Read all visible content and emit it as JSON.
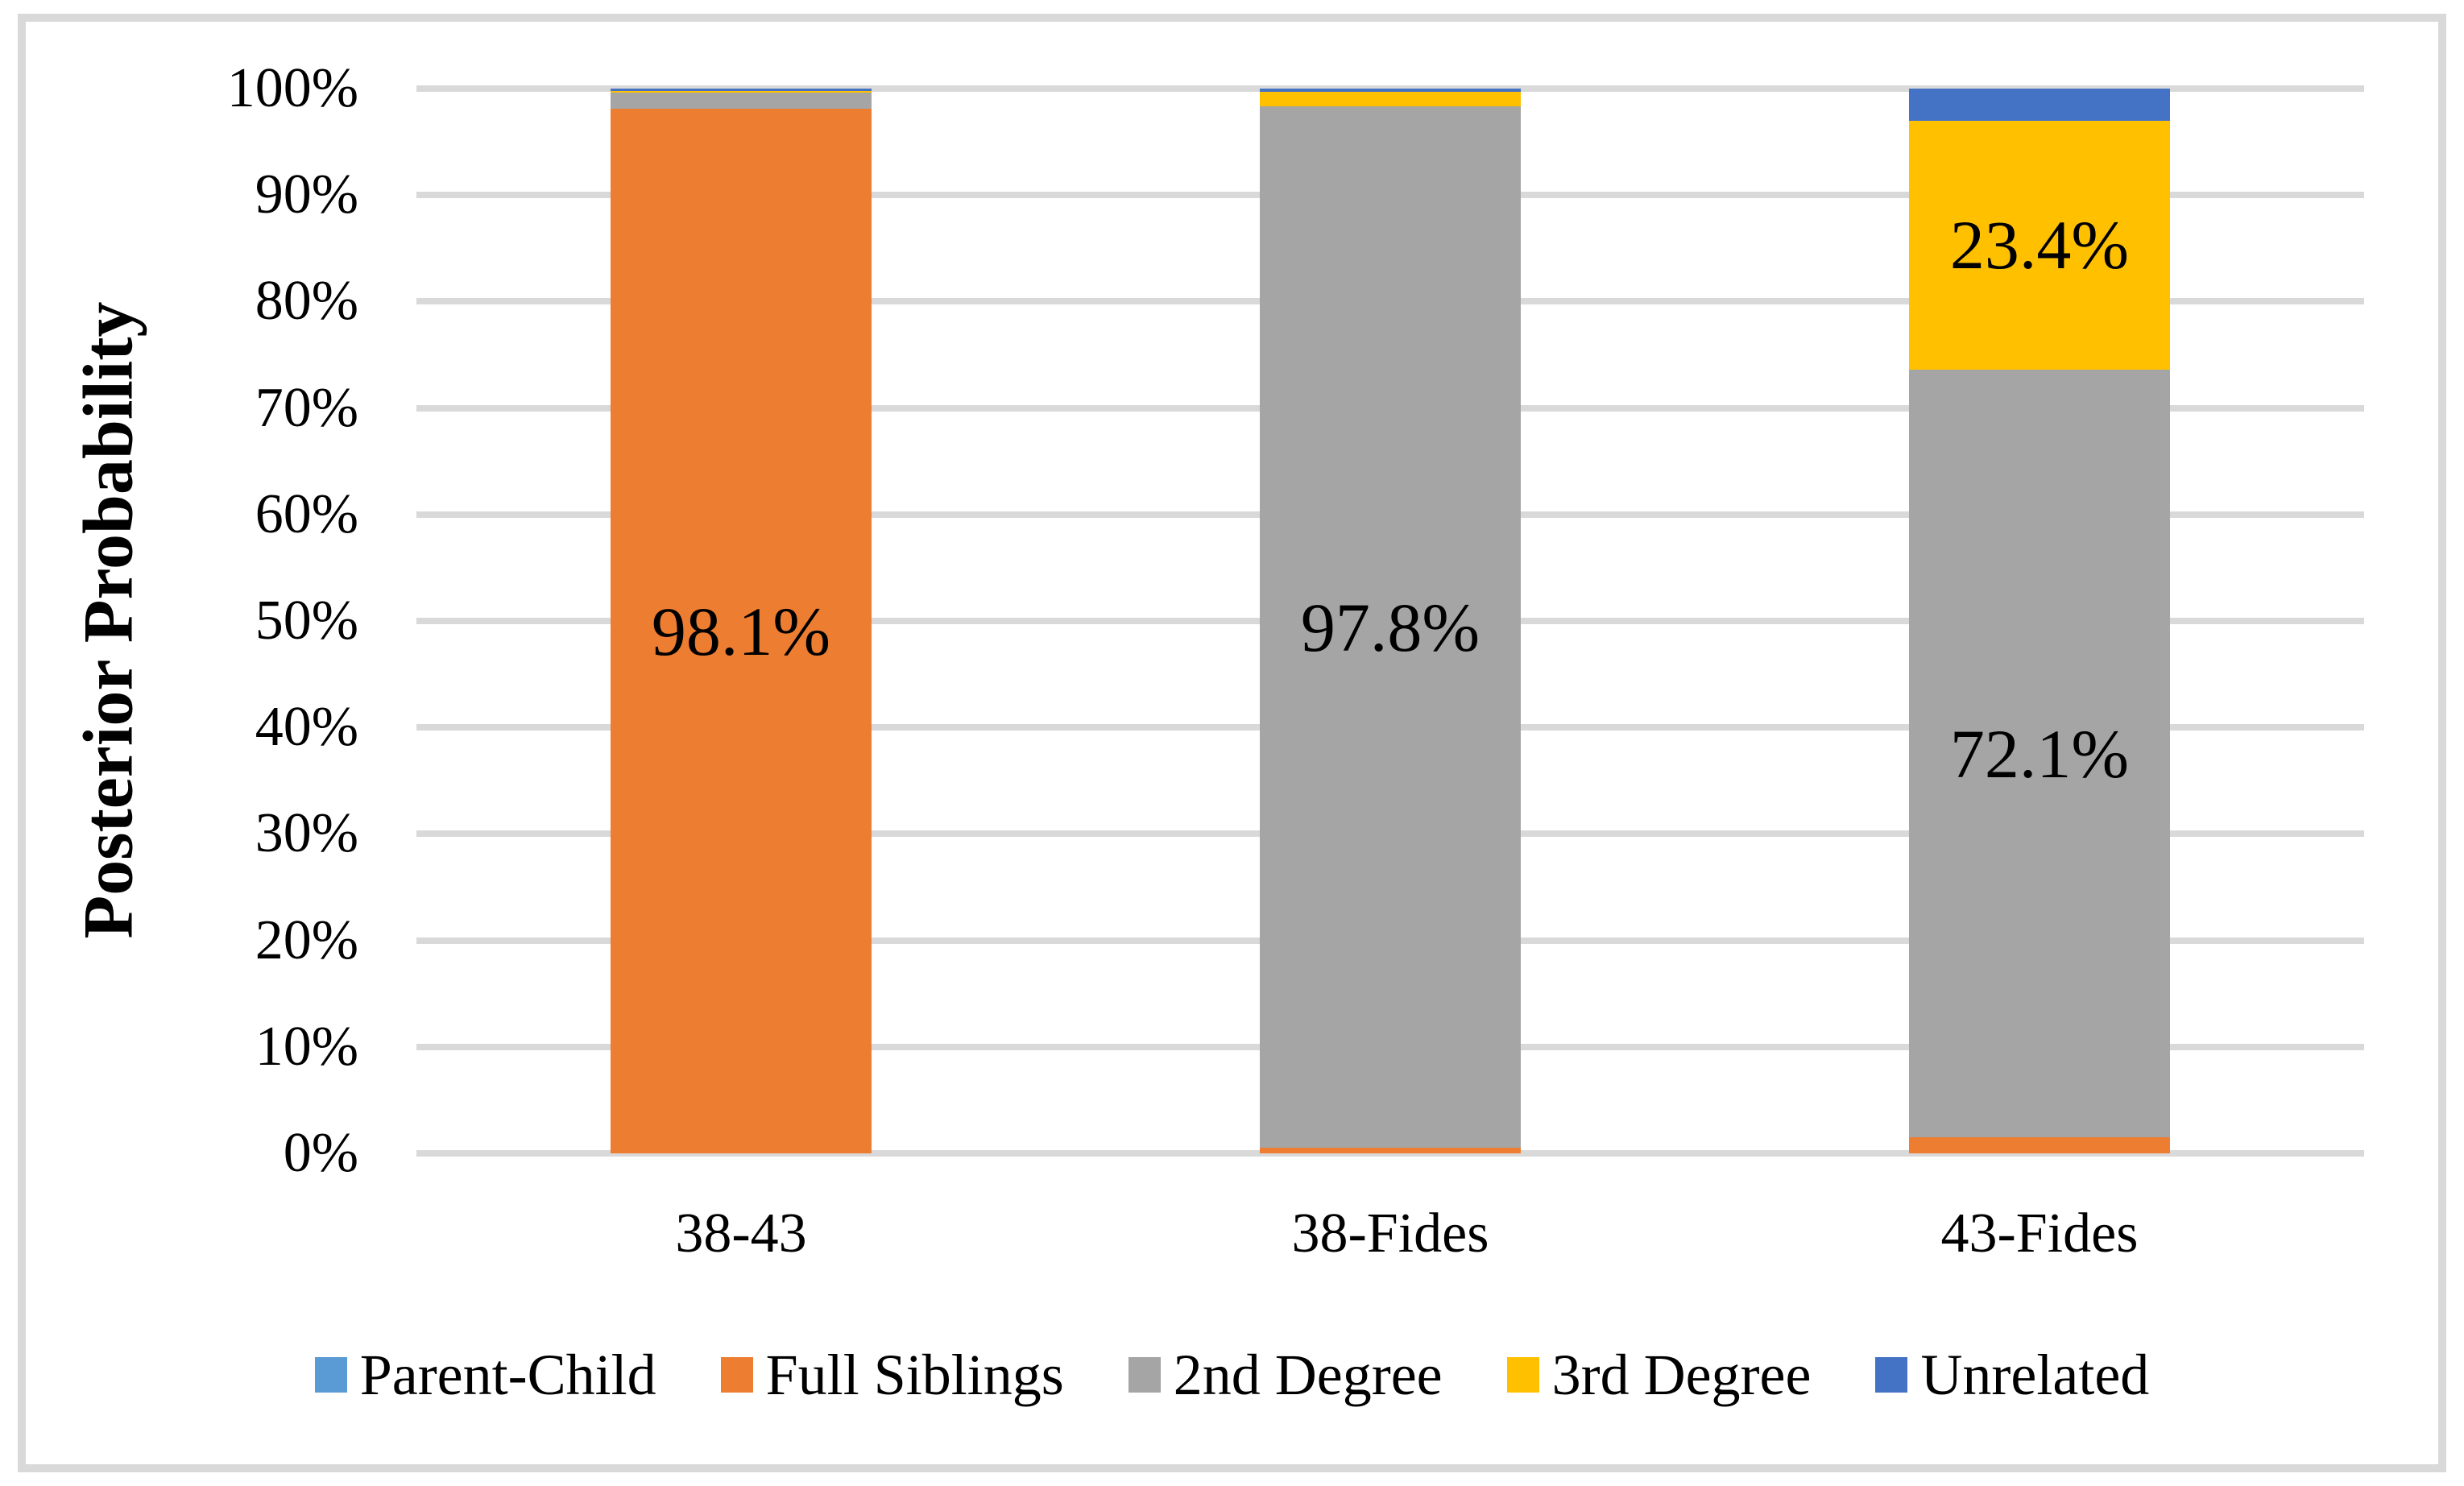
{
  "figure": {
    "background": "#FFFFFF",
    "border_color": "#D9D9D9"
  },
  "chart_data": {
    "type": "bar",
    "stacked": true,
    "title": "",
    "xlabel": "",
    "ylabel": "Posterior Probability",
    "ylim": [
      0,
      100
    ],
    "y_tick_labels": [
      "0%",
      "10%",
      "20%",
      "30%",
      "40%",
      "50%",
      "60%",
      "70%",
      "80%",
      "90%",
      "100%"
    ],
    "grid": true,
    "gridline_color": "#D9D9D9",
    "legend_position": "bottom",
    "categories": [
      "38-43",
      "38-Fides",
      "43-Fides"
    ],
    "series": [
      {
        "name": "Parent-Child",
        "color": "#5B9BD5",
        "values": [
          0,
          0,
          0
        ]
      },
      {
        "name": "Full Siblings",
        "color": "#ED7D31",
        "values": [
          98.1,
          0.5,
          1.5
        ]
      },
      {
        "name": "2nd Degree",
        "color": "#A5A5A5",
        "values": [
          1.5,
          97.8,
          72.1
        ]
      },
      {
        "name": "3rd Degree",
        "color": "#FFC000",
        "values": [
          0.2,
          1.4,
          23.4
        ]
      },
      {
        "name": "Unrelated",
        "color": "#4472C4",
        "values": [
          0.2,
          0.3,
          3.0
        ]
      }
    ],
    "data_labels": [
      {
        "category_index": 0,
        "series": "Full Siblings",
        "text": "98.1%"
      },
      {
        "category_index": 1,
        "series": "2nd Degree",
        "text": "97.8%"
      },
      {
        "category_index": 2,
        "series": "2nd Degree",
        "text": "72.1%"
      },
      {
        "category_index": 2,
        "series": "3rd Degree",
        "text": "23.4%"
      }
    ]
  }
}
